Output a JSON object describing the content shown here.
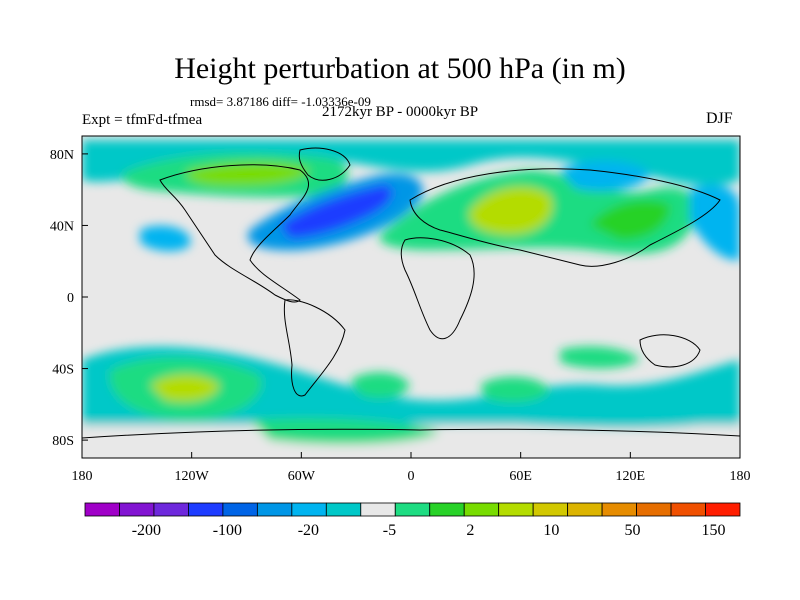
{
  "title": "Height perturbation at 500 hPa (in m)",
  "stats": "rmsd= 3.87186 diff= -1.03336e-09",
  "experiment": "Expt = tfmFd-tfmea",
  "period": "2172kyr BP - 0000kyr BP",
  "season": "DJF",
  "axes": {
    "lat_labels": [
      {
        "lat": 80,
        "label": "80N"
      },
      {
        "lat": 40,
        "label": "40N"
      },
      {
        "lat": 0,
        "label": "0"
      },
      {
        "lat": -40,
        "label": "40S"
      },
      {
        "lat": -80,
        "label": "80S"
      }
    ],
    "lon_labels": [
      {
        "lon": -180,
        "label": "180"
      },
      {
        "lon": -120,
        "label": "120W"
      },
      {
        "lon": -60,
        "label": "60W"
      },
      {
        "lon": 0,
        "label": "0"
      },
      {
        "lon": 60,
        "label": "60E"
      },
      {
        "lon": 120,
        "label": "120E"
      },
      {
        "lon": 180,
        "label": "180"
      }
    ],
    "lat_range": [
      -90,
      90
    ],
    "lon_range": [
      -180,
      180
    ]
  },
  "colorbar": {
    "colors": [
      "#a000c8",
      "#8214d2",
      "#6e28dc",
      "#1e3cff",
      "#0064e6",
      "#0096e6",
      "#00b4f0",
      "#00c8c8",
      "#e8e8e8",
      "#1edc82",
      "#28d228",
      "#78dc00",
      "#b4dc00",
      "#d2c800",
      "#dcb400",
      "#e68c00",
      "#e66e00",
      "#f05000",
      "#ff1e00"
    ],
    "labels": [
      "-200",
      "-100",
      "-20",
      "-5",
      "2",
      "10",
      "50",
      "150"
    ]
  },
  "colors": {
    "background_field": "#e8e8e8",
    "coast": "#000000"
  }
}
